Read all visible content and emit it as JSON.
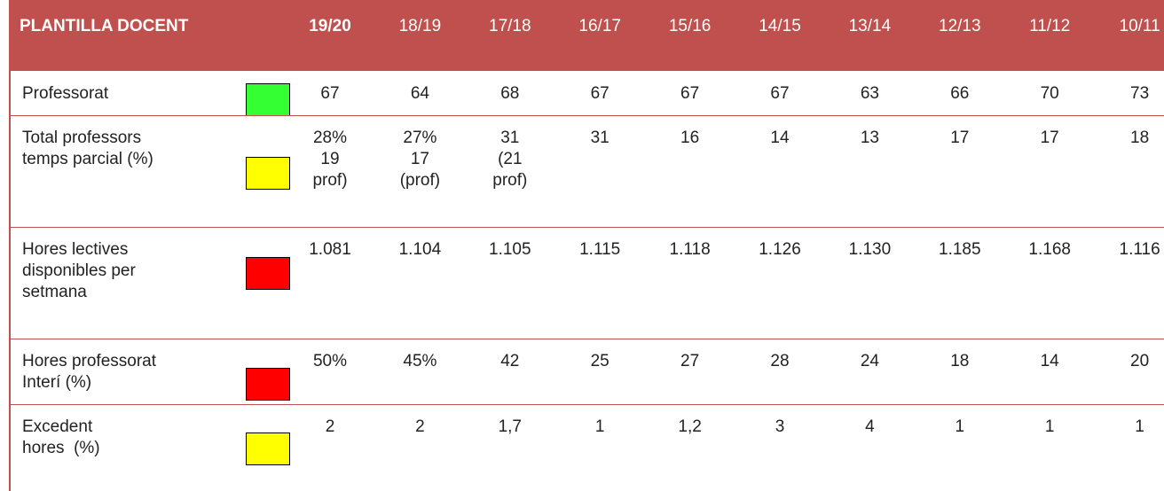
{
  "header": {
    "title": "PLANTILLA DOCENT",
    "years": [
      "19/20",
      "18/19",
      "17/18",
      "16/17",
      "15/16",
      "14/15",
      "13/14",
      "12/13",
      "11/12",
      "10/11"
    ]
  },
  "table": {
    "rows": [
      {
        "label": "Professorat",
        "indicator": "#33ff33",
        "values": [
          "67",
          "64",
          "68",
          "67",
          "67",
          "67",
          "63",
          "66",
          "70",
          "73"
        ]
      },
      {
        "label": "Total professors\ntemps parcial (%)",
        "indicator": "#ffff00",
        "values": [
          "28%\n19\nprof)",
          "27%\n17\n(prof)",
          "31\n(21\nprof)",
          "31",
          "16",
          "14",
          "13",
          "17",
          "17",
          "18"
        ]
      },
      {
        "label": "Hores lectives\ndisponibles per\nsetmana",
        "indicator": "#ff0000",
        "values": [
          "1.081",
          "1.104",
          "1.105",
          "1.115",
          "1.118",
          "1.126",
          "1.130",
          "1.185",
          "1.168",
          "1.116"
        ]
      },
      {
        "label": "Hores professorat\nInterí (%)",
        "indicator": "#ff0000",
        "values": [
          "50%",
          "45%",
          "42",
          "25",
          "27",
          "28",
          "24",
          "18",
          "14",
          "20"
        ]
      },
      {
        "label": "Excedent\nhores  (%)",
        "indicator": "#ffff00",
        "values": [
          "2",
          "2",
          "1,7",
          "1",
          "1,2",
          "3",
          "4",
          "1",
          "1",
          "1"
        ]
      }
    ]
  }
}
